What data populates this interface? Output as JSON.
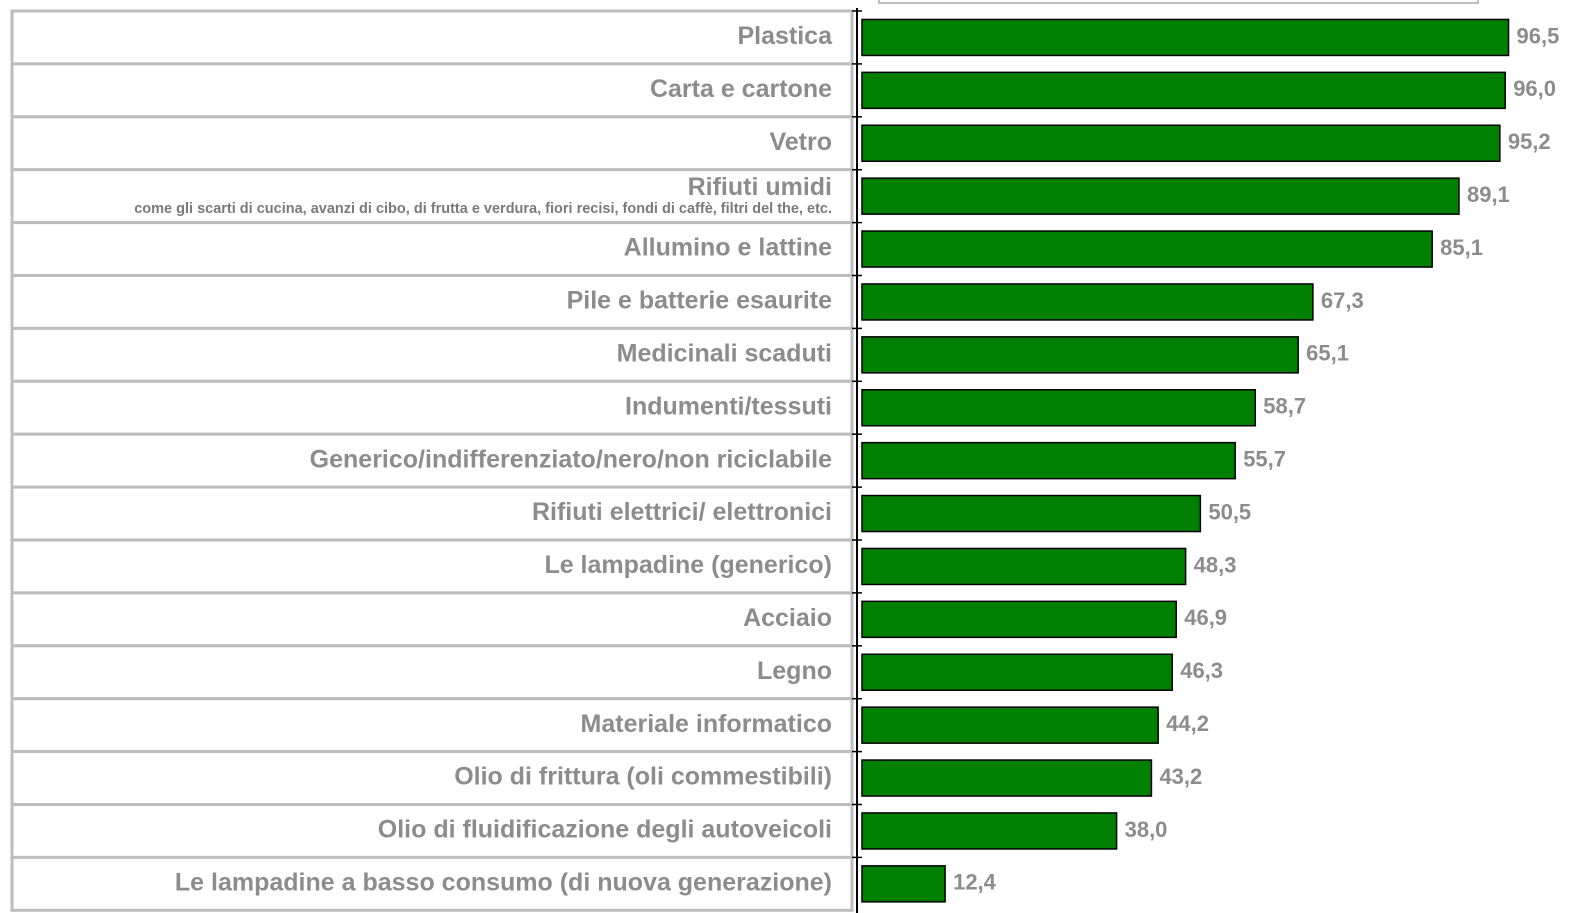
{
  "chart_data": {
    "type": "bar",
    "orientation": "horizontal",
    "categories": [
      "Plastica",
      "Carta e cartone",
      "Vetro",
      "Rifiuti umidi",
      "Allumino e lattine",
      "Pile e batterie esaurite",
      "Medicinali scaduti",
      "Indumenti/tessuti",
      "Generico/indifferenziato/nero/non riciclabile",
      "Rifiuti elettrici/ elettronici",
      "Le lampadine (generico)",
      "Acciaio",
      "Legno",
      "Materiale informatico",
      "Olio di frittura (oli commestibili)",
      "Olio di fluidificazione degli autoveicoli",
      "Le lampadine a basso consumo (di nuova generazione)"
    ],
    "values": [
      96.5,
      96.0,
      95.2,
      89.1,
      85.1,
      67.3,
      65.1,
      58.7,
      55.7,
      50.5,
      48.3,
      46.9,
      46.3,
      44.2,
      43.2,
      38.0,
      12.4
    ],
    "value_labels": [
      "96,5",
      "96,0",
      "95,2",
      "89,1",
      "85,1",
      "67,3",
      "65,1",
      "58,7",
      "55,7",
      "50,5",
      "48,3",
      "46,9",
      "46,3",
      "44,2",
      "43,2",
      "38,0",
      "12,4"
    ],
    "annotations": [
      {
        "category": "Rifiuti umidi",
        "text": "come gli scarti di cucina, avanzi di cibo, di frutta e verdura, fiori recisi, fondi di caffè, filtri del the, etc."
      }
    ],
    "color": "#008000",
    "xlim": [
      0,
      100
    ]
  }
}
